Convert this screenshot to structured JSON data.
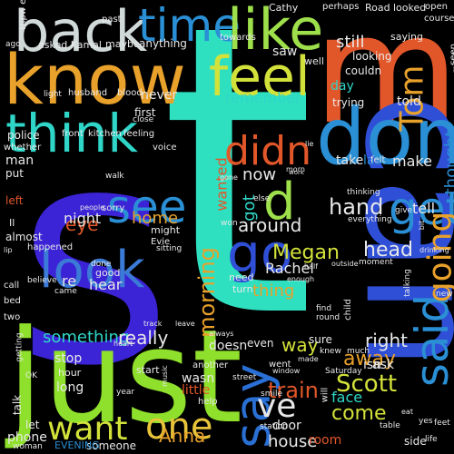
{
  "background": "#000000",
  "word_cloud": {
    "words": [
      {
        "text": "s",
        "color": "#3b23d6"
      },
      {
        "text": "t",
        "color": "#2fe0c0"
      },
      {
        "text": "m",
        "color": "#e2572a"
      },
      {
        "text": "can",
        "color": "#2f4fd6"
      },
      {
        "text": "don",
        "color": "#2a8fd4"
      },
      {
        "text": "just",
        "color": "#8fe02c"
      },
      {
        "text": "know",
        "color": "#e8a12a"
      },
      {
        "text": "back",
        "color": "#d0d8d8"
      },
      {
        "text": "time",
        "color": "#2a8fd4"
      },
      {
        "text": "like",
        "color": "#9ee04b"
      },
      {
        "text": "feel",
        "color": "#d3e23a"
      },
      {
        "text": "think",
        "color": "#2fd6c8"
      },
      {
        "text": "go",
        "color": "#2f4fd6"
      },
      {
        "text": "look",
        "color": "#3b7ad6"
      },
      {
        "text": "see",
        "color": "#2a8fd4"
      },
      {
        "text": "say",
        "color": "#2a6fd4"
      },
      {
        "text": "said",
        "color": "#2a8fd4"
      },
      {
        "text": "get",
        "color": "#2a8fd4"
      },
      {
        "text": "going",
        "color": "#e8a12a"
      },
      {
        "text": "didn",
        "color": "#e2572a"
      },
      {
        "text": "d",
        "color": "#9ee04b"
      },
      {
        "text": "want",
        "color": "#d3e23a"
      },
      {
        "text": "one",
        "color": "#e8c43a"
      },
      {
        "text": "ve",
        "color": "#e8e8e8"
      },
      {
        "text": "Tom",
        "color": "#e8a12a"
      },
      {
        "text": "train",
        "color": "#e2572a"
      },
      {
        "text": "Scott",
        "color": "#d3e23a"
      },
      {
        "text": "hand",
        "color": "#e8e8e8"
      },
      {
        "text": "hear",
        "color": "#e8e8e8"
      },
      {
        "text": "re",
        "color": "#e8e8e8"
      },
      {
        "text": "morning",
        "color": "#e8a12a"
      },
      {
        "text": "something",
        "color": "#2fd6c8"
      },
      {
        "text": "really",
        "color": "#e8e8e8"
      },
      {
        "text": "way",
        "color": "#d3e23a"
      },
      {
        "text": "away",
        "color": "#e8a12a"
      },
      {
        "text": "come",
        "color": "#d3e23a"
      },
      {
        "text": "face",
        "color": "#2fd6c8"
      },
      {
        "text": "right",
        "color": "#e8e8e8"
      },
      {
        "text": "thought",
        "color": "#2a8fd4"
      },
      {
        "text": "head",
        "color": "#e8e8e8"
      },
      {
        "text": "Megan",
        "color": "#d3e23a"
      },
      {
        "text": "Rachel",
        "color": "#e8e8e8"
      },
      {
        "text": "thing",
        "color": "#e8a12a"
      },
      {
        "text": "around",
        "color": "#e8e8e8"
      },
      {
        "text": "now",
        "color": "#e8e8e8"
      },
      {
        "text": "got",
        "color": "#2fd6c8"
      },
      {
        "text": "eye",
        "color": "#e2572a"
      },
      {
        "text": "night",
        "color": "#e8e8e8"
      },
      {
        "text": "home",
        "color": "#e8a12a"
      },
      {
        "text": "wanted",
        "color": "#e2572a"
      },
      {
        "text": "tell",
        "color": "#e8e8e8"
      },
      {
        "text": "make",
        "color": "#e8e8e8"
      },
      {
        "text": "last",
        "color": "#2a8fd4"
      },
      {
        "text": "take",
        "color": "#e8e8e8"
      },
      {
        "text": "still",
        "color": "#e8e8e8"
      },
      {
        "text": "remember",
        "color": "#2fd6c8"
      },
      {
        "text": "day",
        "color": "#2fd6c8"
      },
      {
        "text": "saw",
        "color": "#e8e8e8"
      },
      {
        "text": "never",
        "color": "#e8e8e8"
      },
      {
        "text": "first",
        "color": "#e8e8e8"
      },
      {
        "text": "police",
        "color": "#e8e8e8"
      },
      {
        "text": "man",
        "color": "#e8e8e8"
      },
      {
        "text": "put",
        "color": "#e8e8e8"
      },
      {
        "text": "left",
        "color": "#e2572a"
      },
      {
        "text": "almost",
        "color": "#e8e8e8"
      },
      {
        "text": "house",
        "color": "#e8e8e8"
      },
      {
        "text": "Anna",
        "color": "#e8a12a"
      },
      {
        "text": "door",
        "color": "#e8e8e8"
      },
      {
        "text": "room",
        "color": "#e2572a"
      },
      {
        "text": "side",
        "color": "#e8e8e8"
      },
      {
        "text": "wasn",
        "color": "#e8e8e8"
      },
      {
        "text": "doesn",
        "color": "#e8e8e8"
      },
      {
        "text": "even",
        "color": "#e8e8e8"
      },
      {
        "text": "sure",
        "color": "#e8e8e8"
      },
      {
        "text": "isn",
        "color": "#e8e8e8"
      },
      {
        "text": "ask",
        "color": "#e8e8e8"
      },
      {
        "text": "stop",
        "color": "#e8e8e8"
      },
      {
        "text": "long",
        "color": "#e8e8e8"
      },
      {
        "text": "little",
        "color": "#e2572a"
      },
      {
        "text": "talk",
        "color": "#e8e8e8"
      },
      {
        "text": "phone",
        "color": "#e8e8e8"
      },
      {
        "text": "let",
        "color": "#e8e8e8"
      },
      {
        "text": "someone",
        "color": "#e8e8e8"
      },
      {
        "text": "EVENING",
        "color": "#2a8fd4"
      },
      {
        "text": "told",
        "color": "#e8e8e8"
      },
      {
        "text": "trying",
        "color": "#e8e8e8"
      },
      {
        "text": "looking",
        "color": "#e8e8e8"
      },
      {
        "text": "couldn",
        "color": "#e8e8e8"
      },
      {
        "text": "well",
        "color": "#e8e8e8"
      },
      {
        "text": "Cathy",
        "color": "#e8e8e8"
      },
      {
        "text": "anything",
        "color": "#e8e8e8"
      },
      {
        "text": "asked Kamal",
        "color": "#e8e8e8"
      },
      {
        "text": "maybe",
        "color": "#e8e8e8"
      },
      {
        "text": "towards",
        "color": "#e8e8e8"
      },
      {
        "text": "past",
        "color": "#e8e8e8"
      },
      {
        "text": "Hipw ell",
        "color": "#e8e8e8"
      },
      {
        "text": "ago",
        "color": "#e8e8e8"
      },
      {
        "text": "saying",
        "color": "#e8e8e8"
      },
      {
        "text": "looked",
        "color": "#e8e8e8"
      },
      {
        "text": "Road",
        "color": "#e8e8e8"
      },
      {
        "text": "perhaps",
        "color": "#e8e8e8"
      },
      {
        "text": "open",
        "color": "#e8e8e8"
      },
      {
        "text": "course",
        "color": "#e8e8e8"
      },
      {
        "text": "seen",
        "color": "#e8e8e8"
      },
      {
        "text": "blood",
        "color": "#e8e8e8"
      },
      {
        "text": "husband",
        "color": "#e8e8e8"
      },
      {
        "text": "kitchen",
        "color": "#e8e8e8"
      },
      {
        "text": "front",
        "color": "#e8e8e8"
      },
      {
        "text": "feeling",
        "color": "#e8e8e8"
      },
      {
        "text": "whether",
        "color": "#e8e8e8"
      },
      {
        "text": "voice",
        "color": "#e8e8e8"
      },
      {
        "text": "walk",
        "color": "#e8e8e8"
      },
      {
        "text": "sorry",
        "color": "#e8e8e8"
      },
      {
        "text": "people",
        "color": "#e8e8e8"
      },
      {
        "text": "might",
        "color": "#e8e8e8"
      },
      {
        "text": "Evie",
        "color": "#e8e8e8"
      },
      {
        "text": "sitting",
        "color": "#e8e8e8"
      },
      {
        "text": "done",
        "color": "#e8e8e8"
      },
      {
        "text": "good",
        "color": "#e8e8e8"
      },
      {
        "text": "came",
        "color": "#e8e8e8"
      },
      {
        "text": "believe",
        "color": "#e8e8e8"
      },
      {
        "text": "happened",
        "color": "#e8e8e8"
      },
      {
        "text": "call",
        "color": "#e8e8e8"
      },
      {
        "text": "bed",
        "color": "#e8e8e8"
      },
      {
        "text": "two",
        "color": "#e8e8e8"
      },
      {
        "text": "heart",
        "color": "#e8e8e8"
      },
      {
        "text": "hour",
        "color": "#e8e8e8"
      },
      {
        "text": "start",
        "color": "#e8e8e8"
      },
      {
        "text": "another",
        "color": "#e8e8e8"
      },
      {
        "text": "year",
        "color": "#e8e8e8"
      },
      {
        "text": "help",
        "color": "#e8e8e8"
      },
      {
        "text": "smile",
        "color": "#e8e8e8"
      },
      {
        "text": "street",
        "color": "#e8e8e8"
      },
      {
        "text": "will",
        "color": "#e8e8e8"
      },
      {
        "text": "went",
        "color": "#e8e8e8"
      },
      {
        "text": "window",
        "color": "#e8e8e8"
      },
      {
        "text": "knew",
        "color": "#e8e8e8"
      },
      {
        "text": "much",
        "color": "#e8e8e8"
      },
      {
        "text": "Saturday",
        "color": "#e8e8e8"
      },
      {
        "text": "find",
        "color": "#e8e8e8"
      },
      {
        "text": "round",
        "color": "#e8e8e8"
      },
      {
        "text": "child",
        "color": "#e8e8e8"
      },
      {
        "text": "need",
        "color": "#e8e8e8"
      },
      {
        "text": "turn",
        "color": "#e8e8e8"
      },
      {
        "text": "enough",
        "color": "#e8e8e8"
      },
      {
        "text": "outside",
        "color": "#e8e8e8"
      },
      {
        "text": "moment",
        "color": "#e8e8e8"
      },
      {
        "text": "half",
        "color": "#e8e8e8"
      },
      {
        "text": "drinking",
        "color": "#e8e8e8"
      },
      {
        "text": "talking",
        "color": "#e8e8e8"
      },
      {
        "text": "everything",
        "color": "#e8e8e8"
      },
      {
        "text": "give",
        "color": "#e8e8e8"
      },
      {
        "text": "won",
        "color": "#e8e8e8"
      },
      {
        "text": "else",
        "color": "#e8e8e8"
      },
      {
        "text": "gone",
        "color": "#e8e8e8"
      },
      {
        "text": "work",
        "color": "#e8e8e8"
      },
      {
        "text": "felt",
        "color": "#e8e8e8"
      },
      {
        "text": "station",
        "color": "#e8e8e8"
      },
      {
        "text": "close",
        "color": "#e8e8e8"
      },
      {
        "text": "light",
        "color": "#e8e8e8"
      },
      {
        "text": "always",
        "color": "#e8e8e8"
      },
      {
        "text": "track",
        "color": "#e8e8e8"
      },
      {
        "text": "leave",
        "color": "#e8e8e8"
      },
      {
        "text": "new",
        "color": "#e8e8e8"
      },
      {
        "text": "feet",
        "color": "#e8e8e8"
      },
      {
        "text": "table",
        "color": "#e8e8e8"
      },
      {
        "text": "life",
        "color": "#e8e8e8"
      },
      {
        "text": "made",
        "color": "#e8e8e8"
      },
      {
        "text": "getting",
        "color": "#e8e8e8"
      },
      {
        "text": "OK",
        "color": "#e8e8e8"
      },
      {
        "text": "woman",
        "color": "#e8e8e8"
      },
      {
        "text": "music",
        "color": "#e8e8e8"
      },
      {
        "text": "thinking",
        "color": "#e8e8e8"
      },
      {
        "text": "minute",
        "color": "#e8e8e8"
      },
      {
        "text": "lip",
        "color": "#e8e8e8"
      },
      {
        "text": "bit",
        "color": "#e8e8e8"
      },
      {
        "text": "Il",
        "color": "#e8e8e8"
      },
      {
        "text": "lie",
        "color": "#e8e8e8"
      },
      {
        "text": "morn",
        "color": "#e8e8e8"
      },
      {
        "text": "yes",
        "color": "#e8e8e8"
      },
      {
        "text": "eat",
        "color": "#e8e8e8"
      }
    ]
  }
}
